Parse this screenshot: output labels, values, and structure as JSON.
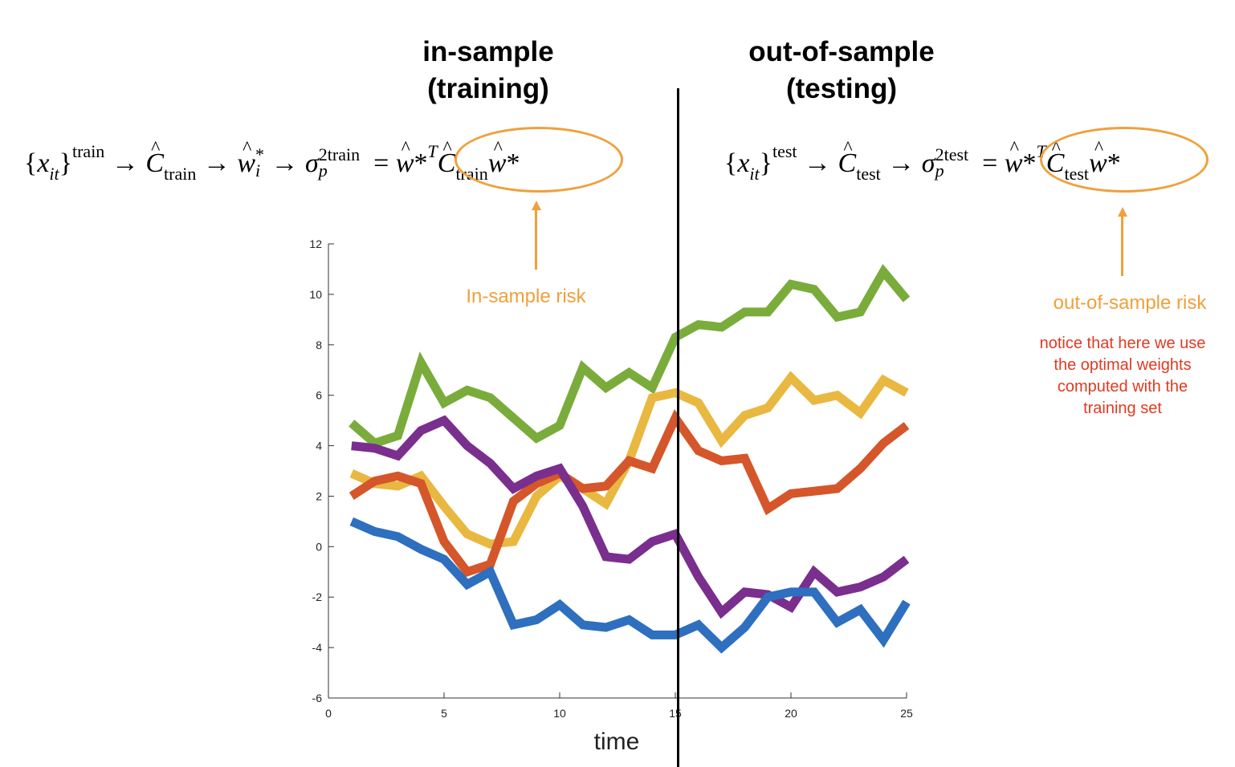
{
  "headings": {
    "left": [
      "in-sample",
      "(training)"
    ],
    "right": [
      "out-of-sample",
      "(testing)"
    ]
  },
  "formulas": {
    "train": {
      "x": "x",
      "x_sub": "it",
      "x_sup": "train",
      "c_sub": "train",
      "w": "w",
      "w_sub": "i",
      "sigma_sup": "2train",
      "sigma_sub": "p",
      "rhs_sup": "T",
      "rhs_c_sub": "train"
    },
    "test": {
      "x": "x",
      "x_sub": "it",
      "x_sup": "test",
      "c_sub": "test",
      "sigma_sup": "2test",
      "sigma_sub": "p",
      "rhs_sup": "T",
      "rhs_c_sub": "test"
    }
  },
  "annotations": {
    "in_sample_risk": "In-sample risk",
    "out_sample_risk": "out-of-sample risk",
    "note": [
      "notice that here we use",
      "the optimal weights",
      "computed with the",
      "training set"
    ]
  },
  "colors": {
    "accent": "#f0a03c",
    "note": "#e03a22",
    "green": "#7aac3c",
    "yellow": "#e8b840",
    "orange": "#d5562a",
    "purple": "#7a2e8e",
    "blue": "#2e6fbf"
  },
  "chart_data": {
    "type": "line",
    "xlabel": "time",
    "ylabel": "",
    "xlim": [
      0,
      25
    ],
    "ylim": [
      -6,
      12
    ],
    "xticks": [
      0,
      5,
      10,
      15,
      20,
      25
    ],
    "yticks": [
      -6,
      -4,
      -2,
      0,
      2,
      4,
      6,
      8,
      10,
      12
    ],
    "split_x": 15,
    "x": [
      1,
      2,
      3,
      4,
      5,
      6,
      7,
      8,
      9,
      10,
      11,
      12,
      13,
      14,
      15,
      16,
      17,
      18,
      19,
      20,
      21,
      22,
      23,
      24,
      25
    ],
    "series": [
      {
        "color": "#7aac3c",
        "values": [
          4.9,
          4.1,
          4.4,
          7.3,
          5.7,
          6.2,
          5.9,
          5.1,
          4.3,
          4.8,
          7.1,
          6.3,
          6.9,
          6.3,
          8.3,
          8.8,
          8.7,
          9.3,
          9.3,
          10.4,
          10.2,
          9.1,
          9.3,
          10.9,
          9.8
        ]
      },
      {
        "color": "#e8b840",
        "values": [
          2.9,
          2.5,
          2.4,
          2.8,
          1.6,
          0.5,
          0.1,
          0.2,
          2.0,
          2.8,
          2.3,
          1.7,
          3.4,
          5.9,
          6.1,
          5.7,
          4.2,
          5.2,
          5.5,
          6.7,
          5.8,
          6.0,
          5.3,
          6.6,
          6.1
        ]
      },
      {
        "color": "#d5562a",
        "values": [
          2.0,
          2.6,
          2.8,
          2.5,
          0.2,
          -1.0,
          -0.7,
          1.8,
          2.5,
          2.9,
          2.3,
          2.4,
          3.4,
          3.1,
          5.1,
          3.8,
          3.4,
          3.5,
          1.5,
          2.1,
          2.2,
          2.3,
          3.1,
          4.1,
          4.8
        ]
      },
      {
        "color": "#7a2e8e",
        "values": [
          4.0,
          3.9,
          3.6,
          4.6,
          5.0,
          4.0,
          3.3,
          2.3,
          2.8,
          3.1,
          1.6,
          -0.4,
          -0.5,
          0.2,
          0.5,
          -1.2,
          -2.6,
          -1.8,
          -1.9,
          -2.4,
          -1.0,
          -1.8,
          -1.6,
          -1.2,
          -0.5
        ]
      },
      {
        "color": "#2e6fbf",
        "values": [
          1.0,
          0.6,
          0.4,
          -0.1,
          -0.5,
          -1.5,
          -1.0,
          -3.1,
          -2.9,
          -2.3,
          -3.1,
          -3.2,
          -2.9,
          -3.5,
          -3.5,
          -3.1,
          -4.0,
          -3.2,
          -2.0,
          -1.8,
          -1.8,
          -3.0,
          -2.5,
          -3.7,
          -2.2
        ]
      }
    ]
  }
}
